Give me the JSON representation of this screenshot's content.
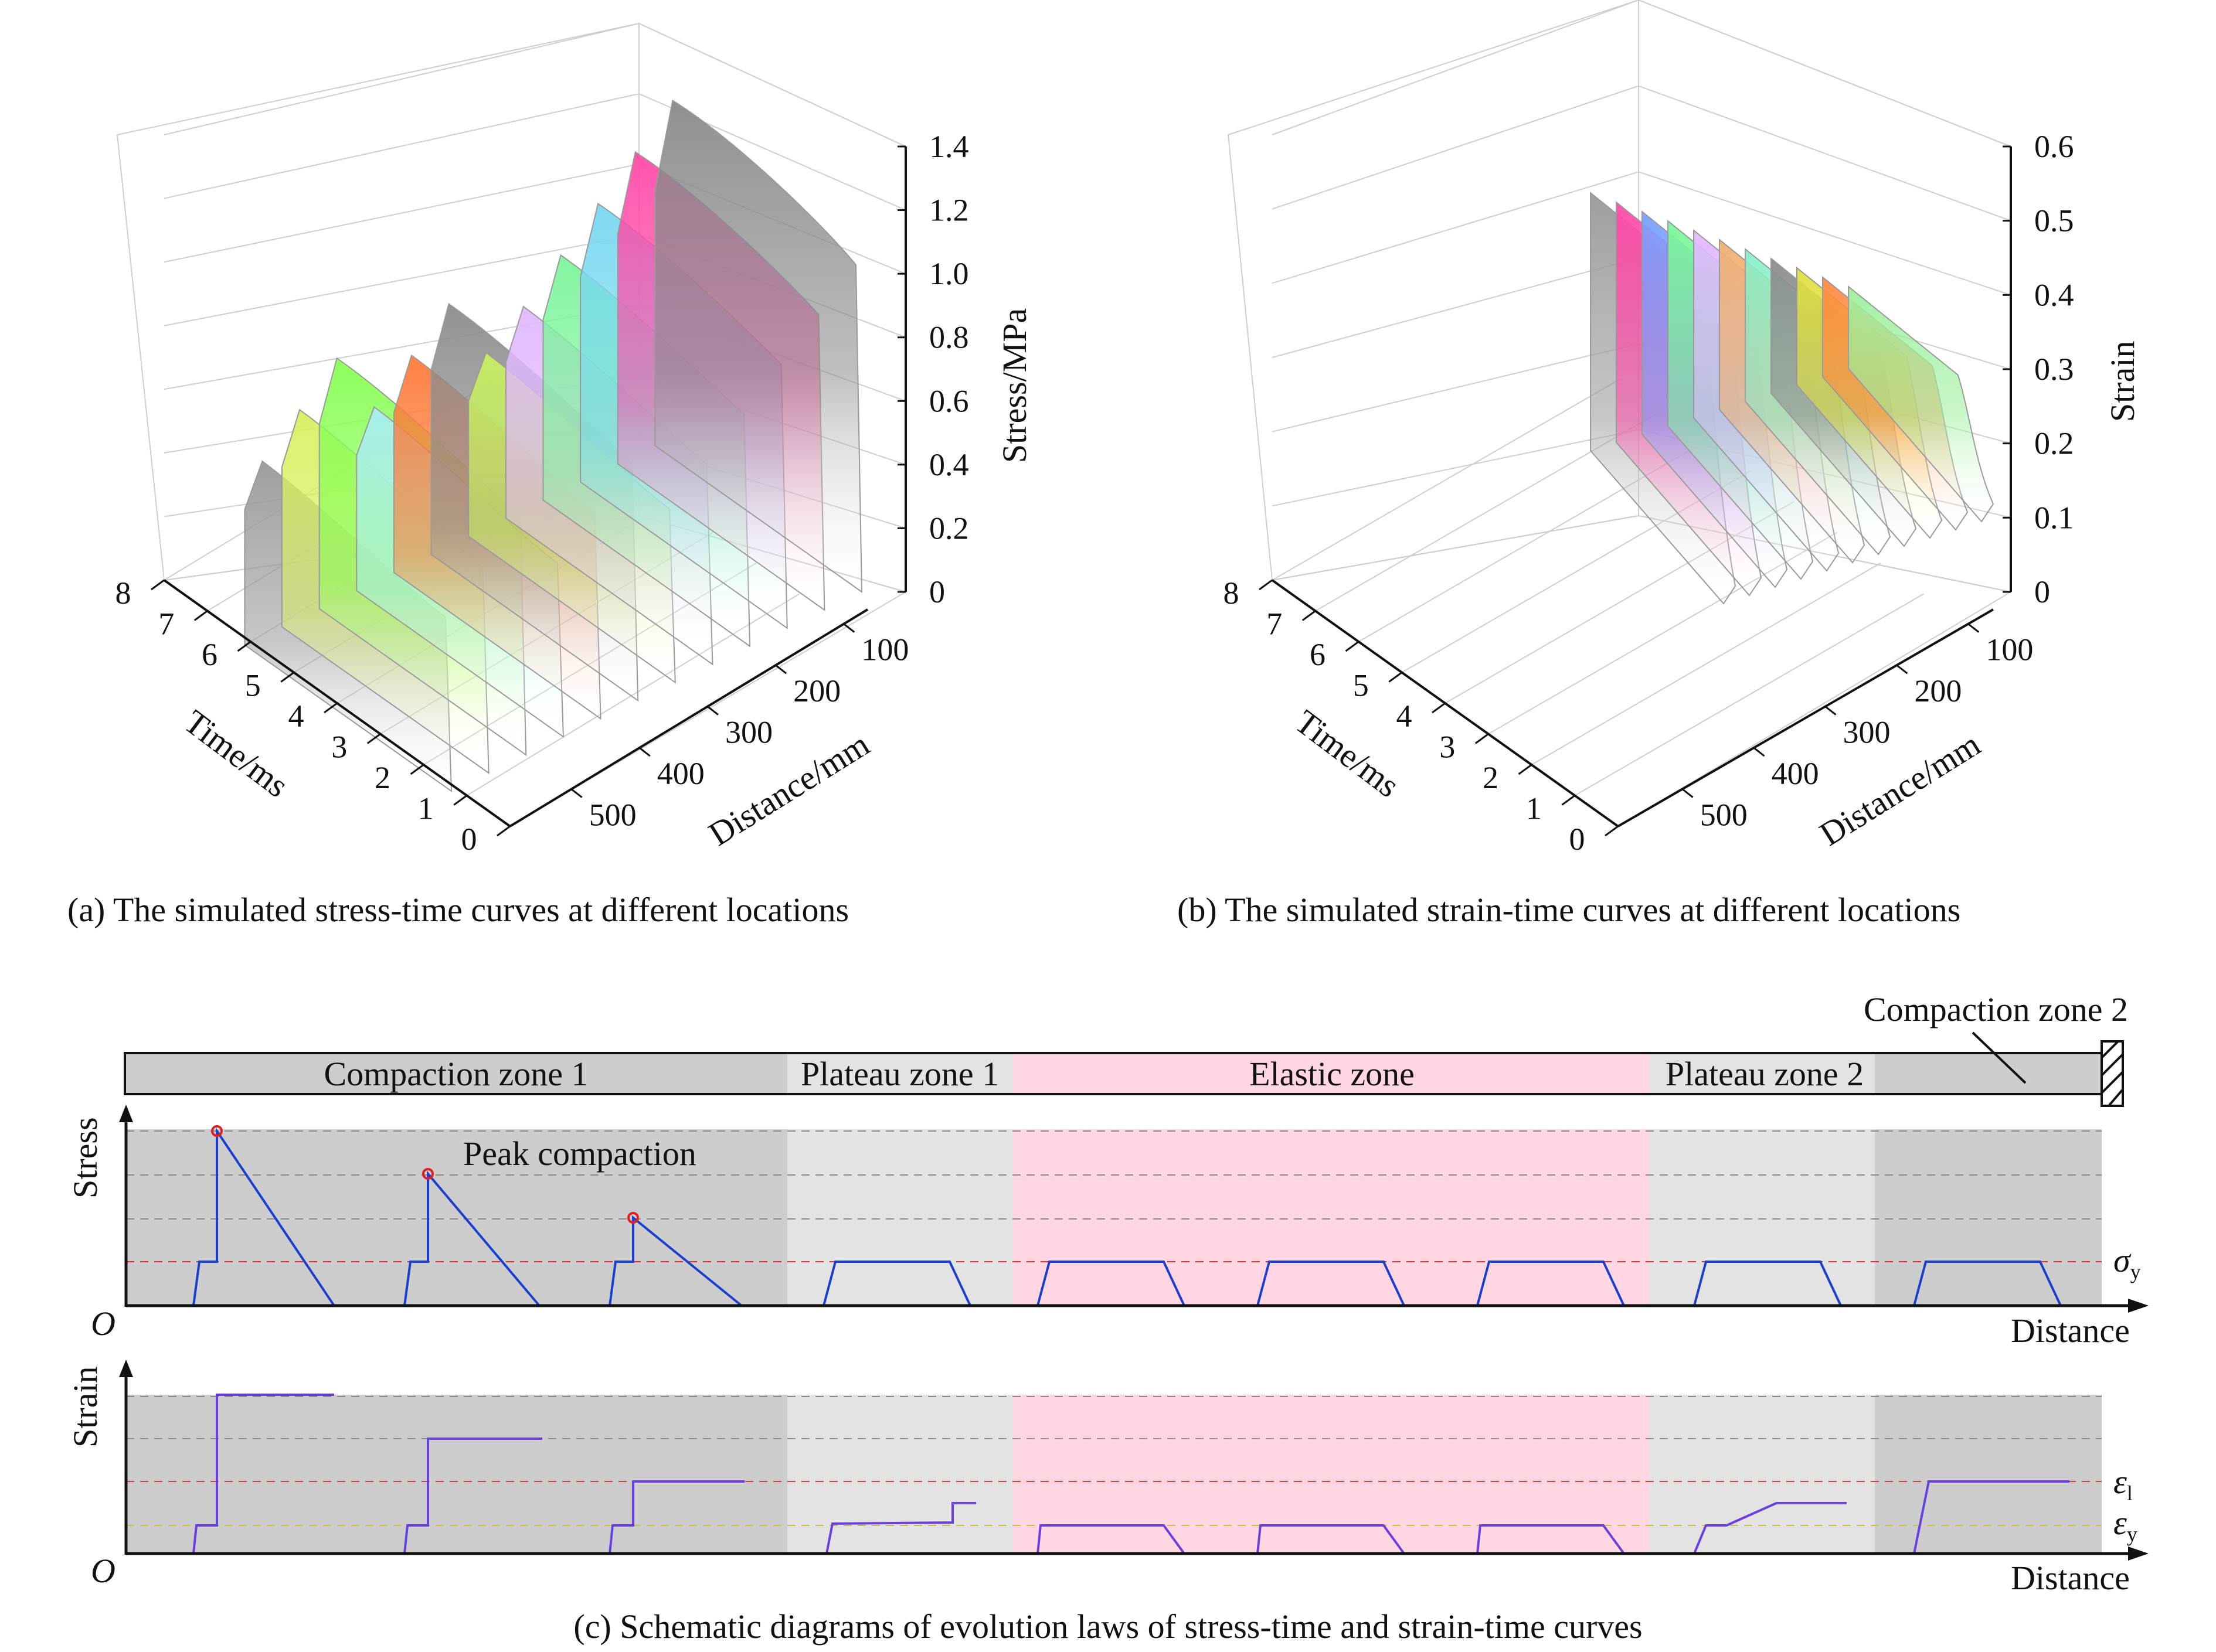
{
  "panel_a": {
    "caption": "(a) The simulated stress-time curves at different locations",
    "z_label": "Stress/MPa",
    "x_label": "Time/ms",
    "y_label": "Distance/mm",
    "z_ticks": [
      "0",
      "0.2",
      "0.4",
      "0.6",
      "0.8",
      "1.0",
      "1.2",
      "1.4"
    ],
    "x_ticks": [
      "0",
      "1",
      "2",
      "3",
      "4",
      "5",
      "6",
      "7",
      "8"
    ],
    "y_ticks": [
      "100",
      "200",
      "300",
      "400",
      "500"
    ],
    "colors": [
      "#9a9a9a",
      "#d8f060",
      "#88ff55",
      "#a8eef0",
      "#ff7a3a",
      "#8c8c8c",
      "#c8f060",
      "#e0b8ff",
      "#7cf59a",
      "#78d8f0",
      "#ff4aa8",
      "#8a8a8a"
    ]
  },
  "panel_b": {
    "caption": "(b) The simulated strain-time curves at different locations",
    "z_label": "Strain",
    "x_label": "Time/ms",
    "y_label": "Distance/mm",
    "z_ticks": [
      "0",
      "0.1",
      "0.2",
      "0.3",
      "0.4",
      "0.5",
      "0.6"
    ],
    "x_ticks": [
      "0",
      "1",
      "2",
      "3",
      "4",
      "5",
      "6",
      "7",
      "8"
    ],
    "y_ticks": [
      "100",
      "200",
      "300",
      "400",
      "500"
    ],
    "colors": [
      "#9a9a9a",
      "#ff4aa8",
      "#7aa0ff",
      "#7cf59a",
      "#e0b8ff",
      "#f0b070",
      "#8aeec8",
      "#8c8c8c",
      "#e0e040",
      "#ff8a40",
      "#9ef09e"
    ]
  },
  "panel_c": {
    "caption": "(c) Schematic diagrams of evolution laws of stress-time and strain-time curves",
    "zones": {
      "compaction1": "Compaction zone 1",
      "plateau1": "Plateau zone 1",
      "elastic": "Elastic zone",
      "plateau2": "Plateau zone 2",
      "compaction2": "Compaction zone 2"
    },
    "stress_label": "Stress",
    "strain_label": "Strain",
    "distance_label": "Distance",
    "origin_label": "O",
    "peak_label": "Peak compaction",
    "sigma": "σ",
    "epsilon": "ε",
    "sub_y": "y",
    "sub_l": "l",
    "colors": {
      "compaction": "#cdcdcd",
      "plateau": "#e3e3e3",
      "elastic": "#ffd6e2",
      "curve": "#1a3fd0",
      "strain_curve": "#6a3fe0",
      "peak": "#e02020"
    }
  }
}
